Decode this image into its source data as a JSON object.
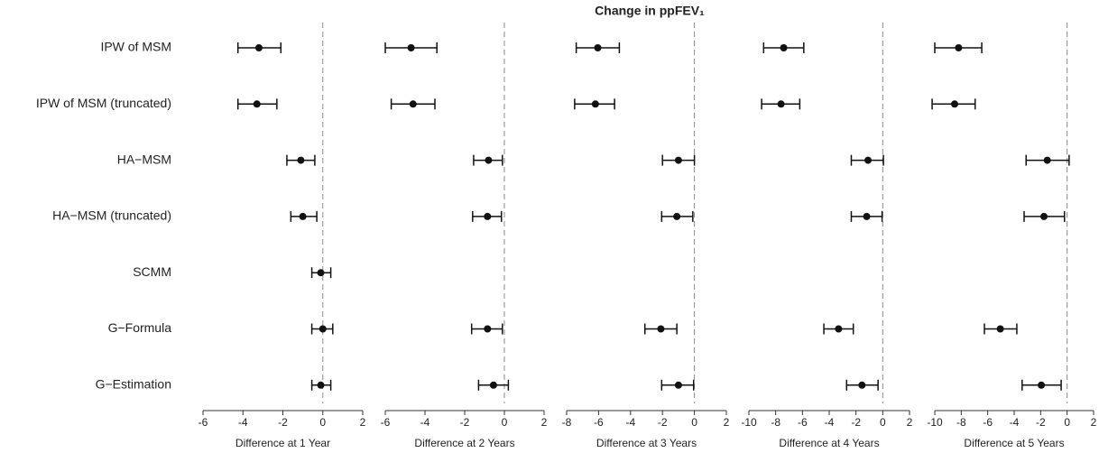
{
  "chart_data": {
    "type": "forest",
    "title": "Change in ppFEV₁",
    "categories": [
      "IPW of MSM",
      "IPW of MSM (truncated)",
      "HA−MSM",
      "HA−MSM (truncated)",
      "SCMM",
      "G−Formula",
      "G−Estimation"
    ],
    "color": "#111111",
    "panels": [
      {
        "xlabel": "Difference at 1 Year",
        "xlim": [
          -6,
          2
        ],
        "xticks": [
          -6,
          -4,
          -2,
          0,
          2
        ],
        "values": [
          -3.2,
          -3.3,
          -1.1,
          -1.0,
          -0.1,
          0.0,
          -0.1
        ],
        "lower": [
          -4.25,
          -4.25,
          -1.8,
          -1.6,
          -0.55,
          -0.55,
          -0.55
        ],
        "upper": [
          -2.1,
          -2.3,
          -0.4,
          -0.3,
          0.4,
          0.5,
          0.4
        ]
      },
      {
        "xlabel": "Difference at 2 Years",
        "xlim": [
          -6,
          2
        ],
        "xticks": [
          -6,
          -4,
          -2,
          0,
          2
        ],
        "values": [
          -4.7,
          -4.6,
          -0.8,
          -0.85,
          null,
          -0.85,
          -0.55
        ],
        "lower": [
          -6.0,
          -5.7,
          -1.55,
          -1.6,
          null,
          -1.65,
          -1.3
        ],
        "upper": [
          -3.4,
          -3.5,
          -0.1,
          -0.15,
          null,
          -0.1,
          0.2
        ]
      },
      {
        "xlabel": "Difference at 3 Years",
        "xlim": [
          -8,
          2
        ],
        "xticks": [
          -8,
          -6,
          -4,
          -2,
          0,
          2
        ],
        "values": [
          -6.05,
          -6.2,
          -1.0,
          -1.1,
          null,
          -2.1,
          -1.0
        ],
        "lower": [
          -7.4,
          -7.5,
          -2.0,
          -2.05,
          null,
          -3.1,
          -2.05
        ],
        "upper": [
          -4.7,
          -5.0,
          0.0,
          -0.1,
          null,
          -1.1,
          -0.05
        ]
      },
      {
        "xlabel": "Difference at 4 Years",
        "xlim": [
          -10,
          2
        ],
        "xticks": [
          -10,
          -8,
          -6,
          -4,
          -2,
          0,
          2
        ],
        "values": [
          -7.4,
          -7.6,
          -1.1,
          -1.2,
          null,
          -3.3,
          -1.55
        ],
        "lower": [
          -8.9,
          -9.05,
          -2.35,
          -2.35,
          null,
          -4.4,
          -2.7
        ],
        "upper": [
          -5.9,
          -6.2,
          0.05,
          -0.05,
          null,
          -2.2,
          -0.35
        ]
      },
      {
        "xlabel": "Difference at 5 Years",
        "xlim": [
          -10,
          2
        ],
        "xticks": [
          -10,
          -8,
          -6,
          -4,
          -2,
          0,
          2
        ],
        "values": [
          -8.2,
          -8.5,
          -1.5,
          -1.75,
          null,
          -5.05,
          -1.95
        ],
        "lower": [
          -10.0,
          -10.2,
          -3.1,
          -3.25,
          null,
          -6.25,
          -3.4
        ],
        "upper": [
          -6.45,
          -6.95,
          0.15,
          -0.2,
          null,
          -3.8,
          -0.45
        ]
      }
    ]
  }
}
